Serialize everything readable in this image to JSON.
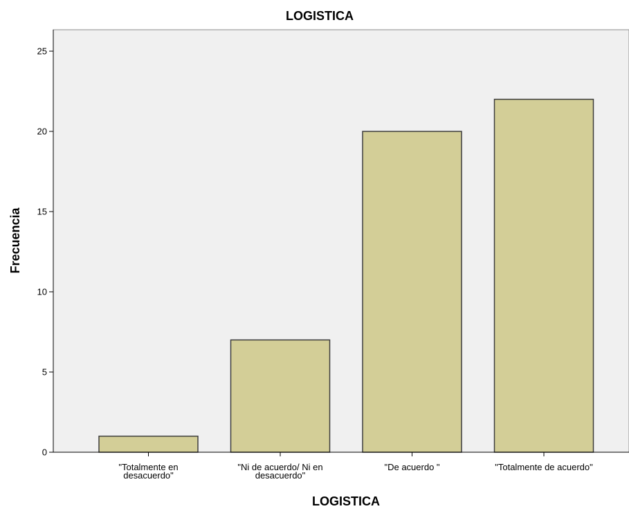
{
  "chart_data": {
    "type": "bar",
    "title": "LOGISTICA",
    "xlabel": "LOGISTICA",
    "ylabel": "Frecuencia",
    "categories": [
      [
        "\"Totalmente en",
        "desacuerdo\""
      ],
      [
        "\"Ni de acuerdo/ Ni en",
        "desacuerdo\""
      ],
      [
        "\"De acuerdo \""
      ],
      [
        "\"Totalmente de acuerdo\""
      ]
    ],
    "values": [
      1,
      7,
      20,
      22
    ],
    "ylim": [
      0,
      25
    ],
    "yticks": [
      "0",
      "5",
      "10",
      "15",
      "20",
      "25"
    ],
    "grid": false,
    "legend": "none"
  },
  "colors": {
    "plot_background": "#f0f0f0",
    "bar_fill": "#d3ce97",
    "bar_stroke": "#3c3c3c",
    "axis": "#000000"
  }
}
